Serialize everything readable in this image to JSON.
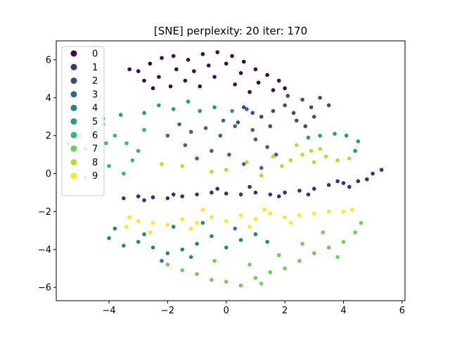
{
  "chart_data": {
    "type": "scatter",
    "title": "[SNE] perplexity: 20 iter: 170",
    "xlabel": "",
    "ylabel": "",
    "xlim": [
      -5.8,
      6.1
    ],
    "ylim": [
      -6.7,
      7.0
    ],
    "xticks": [
      -4,
      -2,
      0,
      2,
      4,
      6
    ],
    "yticks": [
      -6,
      -4,
      -2,
      0,
      2,
      4,
      6
    ],
    "xtick_labels": [
      "−4",
      "−2",
      "0",
      "2",
      "4",
      "6"
    ],
    "ytick_labels": [
      "−6",
      "−4",
      "−2",
      "0",
      "2",
      "4",
      "6"
    ],
    "grid": false,
    "legend": {
      "placement": "upper-left",
      "entries": [
        "0",
        "1",
        "2",
        "3",
        "4",
        "5",
        "6",
        "7",
        "8",
        "9"
      ]
    },
    "colors": [
      "#440154",
      "#482878",
      "#3e4989",
      "#31688e",
      "#26828e",
      "#1f9e89",
      "#35b779",
      "#6ece58",
      "#b5de2b",
      "#fde725"
    ],
    "series": [
      {
        "name": "0",
        "values": [
          [
            -3,
            5.4
          ],
          [
            -2.6,
            5.8
          ],
          [
            -2.2,
            6.1
          ],
          [
            -1.8,
            6.2
          ],
          [
            -1.3,
            6.0
          ],
          [
            -0.8,
            6.3
          ],
          [
            -0.3,
            6.4
          ],
          [
            0.2,
            6.2
          ],
          [
            0.6,
            5.9
          ],
          [
            1.0,
            5.5
          ],
          [
            1.4,
            5.2
          ],
          [
            1.8,
            4.9
          ],
          [
            -2.8,
            4.9
          ],
          [
            -2.3,
            5.1
          ],
          [
            -1.7,
            5.5
          ],
          [
            -1.1,
            5.4
          ],
          [
            -0.6,
            5.7
          ],
          [
            0.0,
            5.8
          ],
          [
            0.5,
            5.3
          ],
          [
            1.1,
            4.8
          ],
          [
            1.6,
            4.4
          ],
          [
            -2.5,
            4.5
          ],
          [
            -1.9,
            4.6
          ],
          [
            -1.4,
            4.9
          ],
          [
            -0.4,
            5.1
          ],
          [
            0.3,
            4.7
          ],
          [
            -3.3,
            5.5
          ],
          [
            -0.9,
            4.6
          ],
          [
            0.8,
            4.3
          ],
          [
            2.0,
            4.5
          ]
        ]
      },
      {
        "name": "1",
        "values": [
          [
            -3.5,
            -1.3
          ],
          [
            -3.0,
            -1.2
          ],
          [
            -2.5,
            -1.25
          ],
          [
            -2.0,
            -1.3
          ],
          [
            -1.5,
            -1.2
          ],
          [
            -1.0,
            -1.1
          ],
          [
            -0.5,
            -1.0
          ],
          [
            0.0,
            -1.05
          ],
          [
            0.5,
            -1.1
          ],
          [
            1.0,
            -1.0
          ],
          [
            1.5,
            -1.1
          ],
          [
            2.0,
            -1.0
          ],
          [
            2.5,
            -0.9
          ],
          [
            3.0,
            -0.8
          ],
          [
            3.5,
            -0.6
          ],
          [
            4.0,
            -0.5
          ],
          [
            4.5,
            -0.4
          ],
          [
            5.0,
            0.0
          ],
          [
            5.3,
            0.2
          ],
          [
            4.8,
            -0.3
          ],
          [
            4.2,
            -0.7
          ],
          [
            3.8,
            -0.4
          ],
          [
            2.8,
            -1.1
          ],
          [
            1.8,
            -1.2
          ],
          [
            -1.8,
            -1.1
          ],
          [
            -2.8,
            -1.4
          ],
          [
            -0.3,
            -0.8
          ],
          [
            0.8,
            -0.7
          ]
        ]
      },
      {
        "name": "2",
        "values": [
          [
            1.6,
            3.3
          ],
          [
            2.0,
            3.6
          ],
          [
            2.3,
            3.2
          ],
          [
            2.6,
            3.9
          ],
          [
            2.9,
            3.5
          ],
          [
            3.2,
            4.0
          ],
          [
            3.5,
            3.6
          ],
          [
            2.4,
            2.8
          ],
          [
            2.7,
            2.5
          ],
          [
            0.6,
            3.5
          ],
          [
            0.9,
            3.2
          ],
          [
            1.2,
            3.0
          ],
          [
            0.4,
            2.7
          ],
          [
            1.5,
            2.5
          ],
          [
            3.0,
            3.0
          ],
          [
            2.1,
            4.1
          ]
        ]
      },
      {
        "name": "3",
        "values": [
          [
            -1.6,
            2.6
          ],
          [
            -1.2,
            2.2
          ],
          [
            -0.7,
            2.4
          ],
          [
            -0.2,
            2.0
          ],
          [
            0.3,
            2.5
          ],
          [
            0.7,
            3.4
          ],
          [
            1.0,
            1.8
          ],
          [
            1.4,
            1.4
          ],
          [
            -0.5,
            1.2
          ],
          [
            0.1,
            1.0
          ],
          [
            -1.0,
            0.8
          ],
          [
            0.6,
            0.5
          ],
          [
            1.2,
            0.3
          ],
          [
            -1.4,
            1.5
          ],
          [
            -0.1,
            2.8
          ],
          [
            0.9,
            2.3
          ],
          [
            1.7,
            1.0
          ],
          [
            -2.0,
            2.0
          ]
        ]
      },
      {
        "name": "4",
        "values": [
          [
            -4.0,
            -3.4
          ],
          [
            -3.5,
            -3.8
          ],
          [
            -3.0,
            -3.6
          ],
          [
            -2.5,
            -3.9
          ],
          [
            -2.0,
            -4.2
          ],
          [
            -1.5,
            -4.0
          ],
          [
            -1.0,
            -3.7
          ],
          [
            -0.5,
            -3.3
          ],
          [
            0.0,
            -3.9
          ],
          [
            0.5,
            -3.5
          ],
          [
            1.0,
            -3.2
          ],
          [
            -1.8,
            -2.8
          ],
          [
            -0.8,
            -2.6
          ],
          [
            0.3,
            -2.9
          ],
          [
            -2.8,
            -3.2
          ],
          [
            -3.8,
            -2.9
          ],
          [
            1.4,
            -3.6
          ],
          [
            -2.2,
            -4.6
          ],
          [
            -1.2,
            -4.4
          ]
        ]
      },
      {
        "name": "5",
        "values": [
          [
            -2.3,
            3.6
          ],
          [
            -1.8,
            3.4
          ],
          [
            -1.3,
            3.8
          ],
          [
            -0.9,
            3.3
          ],
          [
            -0.4,
            3.5
          ],
          [
            0.2,
            3.3
          ],
          [
            -2.8,
            3.2
          ],
          [
            3.2,
            2.0
          ],
          [
            3.7,
            2.1
          ],
          [
            4.1,
            2.0
          ],
          [
            4.5,
            1.7
          ],
          [
            4.4,
            1.2
          ],
          [
            -4.2,
            2.9
          ],
          [
            -3.6,
            3.1
          ],
          [
            2.8,
            1.9
          ]
        ]
      },
      {
        "name": "6",
        "values": [
          [
            -5.0,
            2.0
          ],
          [
            -4.6,
            2.4
          ],
          [
            -4.2,
            2.6
          ],
          [
            -3.8,
            2.0
          ],
          [
            -3.4,
            1.6
          ],
          [
            -3.0,
            1.2
          ],
          [
            -4.8,
            1.3
          ],
          [
            -4.4,
            0.8
          ],
          [
            -4.0,
            0.4
          ],
          [
            -3.5,
            0.0
          ],
          [
            -5.2,
            0.6
          ],
          [
            -4.8,
            -0.2
          ],
          [
            -3.2,
            0.7
          ],
          [
            -2.8,
            2.3
          ],
          [
            -4.1,
            1.6
          ],
          [
            -5.4,
            1.6
          ]
        ]
      },
      {
        "name": "7",
        "values": [
          [
            -2.0,
            -4.8
          ],
          [
            -1.5,
            -5.1
          ],
          [
            -1.0,
            -5.3
          ],
          [
            -0.5,
            -5.6
          ],
          [
            0.0,
            -5.7
          ],
          [
            0.5,
            -5.9
          ],
          [
            1.0,
            -5.5
          ],
          [
            1.5,
            -5.2
          ],
          [
            2.0,
            -5.0
          ],
          [
            2.5,
            -4.6
          ],
          [
            3.0,
            -4.2
          ],
          [
            3.5,
            -3.9
          ],
          [
            4.0,
            -3.6
          ],
          [
            4.4,
            -3.1
          ],
          [
            4.6,
            -2.6
          ],
          [
            1.8,
            -4.3
          ],
          [
            2.6,
            -3.7
          ],
          [
            3.3,
            -3.1
          ],
          [
            0.8,
            -4.8
          ],
          [
            -0.4,
            -4.6
          ],
          [
            1.2,
            -5.8
          ],
          [
            3.8,
            -4.4
          ]
        ]
      },
      {
        "name": "8",
        "values": [
          [
            2.2,
            0.7
          ],
          [
            2.6,
            1.0
          ],
          [
            3.0,
            0.6
          ],
          [
            3.4,
            0.9
          ],
          [
            3.8,
            0.7
          ],
          [
            4.2,
            0.8
          ],
          [
            2.4,
            1.5
          ],
          [
            2.9,
            1.2
          ],
          [
            1.6,
            0.9
          ],
          [
            1.9,
            0.4
          ],
          [
            0.7,
            0.6
          ],
          [
            -0.5,
            0.1
          ],
          [
            -1.5,
            0.4
          ],
          [
            -2.2,
            0.5
          ],
          [
            1.2,
            -0.1
          ],
          [
            3.2,
            1.3
          ],
          [
            0.0,
            0.2
          ]
        ]
      },
      {
        "name": "9",
        "values": [
          [
            -3.4,
            -2.8
          ],
          [
            -3.0,
            -2.5
          ],
          [
            -2.5,
            -2.6
          ],
          [
            -2.0,
            -2.7
          ],
          [
            -1.5,
            -2.4
          ],
          [
            -1.0,
            -2.6
          ],
          [
            -0.5,
            -2.3
          ],
          [
            0.0,
            -2.5
          ],
          [
            0.5,
            -2.2
          ],
          [
            1.0,
            -2.4
          ],
          [
            1.5,
            -2.1
          ],
          [
            2.0,
            -2.3
          ],
          [
            2.5,
            -2.2
          ],
          [
            3.0,
            -2.1
          ],
          [
            3.5,
            -2.0
          ],
          [
            4.0,
            -2.0
          ],
          [
            4.3,
            -1.9
          ],
          [
            -2.6,
            -3.1
          ],
          [
            -1.2,
            -2.9
          ],
          [
            0.8,
            -2.8
          ],
          [
            2.2,
            -2.6
          ],
          [
            -3.3,
            -2.3
          ],
          [
            1.3,
            -1.9
          ],
          [
            -0.8,
            -1.9
          ]
        ]
      }
    ]
  }
}
